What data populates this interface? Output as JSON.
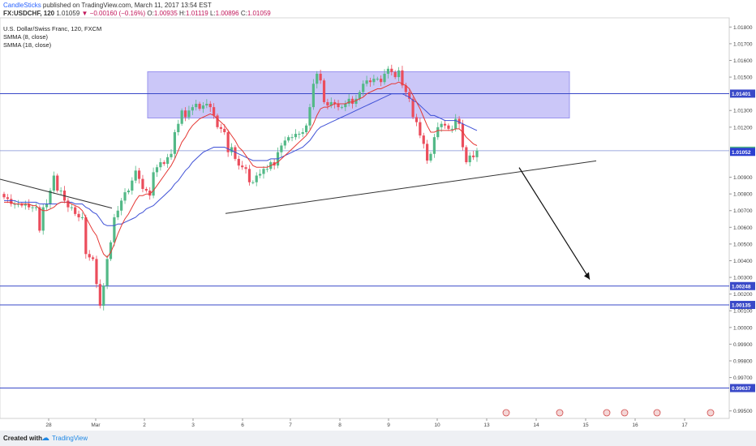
{
  "header": {
    "author": "CandleSticks",
    "published": "published on TradingView.com, March 11, 2017 13:54 EST"
  },
  "quote": {
    "symbol": "FX:USDCHF, 120",
    "last": "1.01059",
    "change": "−0.00160 (−0.16%)",
    "open_label": "O:",
    "open": "1.00935",
    "high_label": "H:",
    "high": "1.01119",
    "low_label": "L:",
    "low": "1.00896",
    "close_label": "C:",
    "close": "1.01059"
  },
  "legend": {
    "title": "U.S. Dollar/Swiss Franc, 120, FXCM",
    "sma_fast": "SMMA (8, close)",
    "sma_slow": "SMMA (18, close)"
  },
  "footer": {
    "created_with": "Created with",
    "brand": "TradingView"
  },
  "colors": {
    "bull": "#53b987",
    "bear": "#eb4d5c",
    "smma_fast": "#e53935",
    "smma_slow": "#3f51d6",
    "zone": "#b9b4f5",
    "hline": "#3949c8",
    "trend": "#333333"
  },
  "chart_data": {
    "type": "candlestick",
    "ylim": [
      0.99455,
      1.01855
    ],
    "y_ticks": [
      "1.01800",
      "1.01700",
      "1.01600",
      "1.01500",
      "1.01300",
      "1.01200",
      "1.00900",
      "1.00800",
      "1.00700",
      "1.00600",
      "1.00500",
      "1.00400",
      "1.00300",
      "1.00200",
      "1.00100",
      "1.00000",
      "0.99900",
      "0.99800",
      "0.99700",
      "0.99500"
    ],
    "x_ticks": [
      "28",
      "Mar",
      "2",
      "3",
      "6",
      "7",
      "8",
      "9",
      "10",
      "13",
      "14",
      "15",
      "16",
      "17"
    ],
    "price_labels": [
      {
        "value": 1.01401,
        "label": "1.01401",
        "style": "line"
      },
      {
        "value": 1.01059,
        "label": "1.01059",
        "style": "last"
      },
      {
        "value": 1.01052,
        "label": "1.01052",
        "style": "blue"
      },
      {
        "value": 1.00248,
        "label": "1.00248",
        "style": "line"
      },
      {
        "value": 1.00135,
        "label": "1.00135",
        "style": "line"
      },
      {
        "value": 0.99637,
        "label": "0.99637",
        "style": "line"
      }
    ],
    "resistance_zone": {
      "low": 1.01255,
      "high": 1.01532
    },
    "horizontal_lines": [
      1.01401,
      1.00248,
      1.00135,
      0.99637
    ],
    "series_close": [
      1.0078,
      1.0077,
      1.0074,
      1.0074,
      1.0074,
      1.0073,
      1.0074,
      1.0072,
      1.0072,
      1.0072,
      1.0058,
      1.0072,
      1.0074,
      1.0082,
      1.0091,
      1.0082,
      1.0082,
      1.0076,
      1.0072,
      1.0072,
      1.0068,
      1.0066,
      1.0066,
      1.0044,
      1.0042,
      1.0041,
      1.0026,
      1.0013,
      1.0025,
      1.0041,
      1.0051,
      1.0066,
      1.007,
      1.0076,
      1.0081,
      1.0082,
      1.0088,
      1.0094,
      1.0089,
      1.0083,
      1.0082,
      1.0079,
      1.0093,
      1.0096,
      1.0099,
      1.0098,
      1.0102,
      1.0104,
      1.0117,
      1.0122,
      1.013,
      1.0126,
      1.013,
      1.0132,
      1.0134,
      1.0131,
      1.0133,
      1.0134,
      1.0132,
      1.0127,
      1.012,
      1.0119,
      1.0117,
      1.0105,
      1.0108,
      1.0101,
      1.0097,
      1.0096,
      1.0095,
      1.0087,
      1.0087,
      1.0091,
      1.0092,
      1.0095,
      1.0095,
      1.0099,
      1.0097,
      1.0105,
      1.0109,
      1.0112,
      1.0114,
      1.0114,
      1.0116,
      1.0116,
      1.0117,
      1.0121,
      1.0132,
      1.0146,
      1.0152,
      1.0148,
      1.0135,
      1.0133,
      1.0135,
      1.0134,
      1.0132,
      1.0132,
      1.0134,
      1.0137,
      1.0134,
      1.0137,
      1.0141,
      1.0146,
      1.0148,
      1.0147,
      1.0149,
      1.0149,
      1.0147,
      1.0152,
      1.0155,
      1.0153,
      1.015,
      1.0154,
      1.0145,
      1.0141,
      1.0137,
      1.0126,
      1.0123,
      1.0115,
      1.011,
      1.01,
      1.0104,
      1.0114,
      1.012,
      1.0122,
      1.0121,
      1.0119,
      1.0119,
      1.0125,
      1.0122,
      1.0108,
      1.0099,
      1.0103,
      1.0102,
      1.0106
    ],
    "series_smma8": [
      1.0075,
      1.0075,
      1.0075,
      1.0074,
      1.0074,
      1.0074,
      1.0074,
      1.0074,
      1.0073,
      1.0073,
      1.0071,
      1.007,
      1.007,
      1.0071,
      1.0072,
      1.0074,
      1.0075,
      1.0075,
      1.0075,
      1.0074,
      1.0073,
      1.0072,
      1.007,
      1.0066,
      1.0062,
      1.0058,
      1.0055,
      1.0049,
      1.0044,
      1.0042,
      1.0045,
      1.005,
      1.0056,
      1.0061,
      1.0065,
      1.0068,
      1.0072,
      1.0076,
      1.0079,
      1.0079,
      1.008,
      1.008,
      1.0082,
      1.0085,
      1.0088,
      1.0091,
      1.0094,
      1.0097,
      1.0101,
      1.0106,
      1.0111,
      1.0114,
      1.0118,
      1.0121,
      1.0123,
      1.0125,
      1.0126,
      1.0127,
      1.0128,
      1.0127,
      1.0125,
      1.0123,
      1.0121,
      1.0118,
      1.0115,
      1.0112,
      1.0108,
      1.0106,
      1.0103,
      1.01,
      1.0097,
      1.0096,
      1.0096,
      1.0096,
      1.0096,
      1.0097,
      1.0098,
      1.0099,
      1.0101,
      1.0103,
      1.0105,
      1.0107,
      1.0109,
      1.0111,
      1.0113,
      1.0115,
      1.0118,
      1.0122,
      1.0127,
      1.0131,
      1.0132,
      1.0132,
      1.0133,
      1.0134,
      1.0134,
      1.0134,
      1.0134,
      1.0135,
      1.0135,
      1.0136,
      1.0137,
      1.0138,
      1.014,
      1.0141,
      1.0142,
      1.0143,
      1.0143,
      1.0144,
      1.0145,
      1.0146,
      1.0146,
      1.0147,
      1.0146,
      1.0145,
      1.0143,
      1.0139,
      1.0135,
      1.0131,
      1.0126,
      1.0121,
      1.0117,
      1.0117,
      1.0118,
      1.0118,
      1.0118,
      1.0118,
      1.0118,
      1.0119,
      1.0119,
      1.0117,
      1.0114,
      1.0112,
      1.011,
      1.0109
    ],
    "series_smma18": [
      1.0076,
      1.0076,
      1.0076,
      1.0076,
      1.0075,
      1.0075,
      1.0075,
      1.0075,
      1.0075,
      1.0075,
      1.0074,
      1.0074,
      1.0074,
      1.0074,
      1.0074,
      1.0074,
      1.0075,
      1.0075,
      1.0075,
      1.0075,
      1.0074,
      1.0074,
      1.0074,
      1.0072,
      1.0071,
      1.0069,
      1.0068,
      1.0065,
      1.0062,
      1.0061,
      1.0061,
      1.0061,
      1.0062,
      1.0062,
      1.0063,
      1.0064,
      1.0065,
      1.0066,
      1.0068,
      1.0069,
      1.0071,
      1.0072,
      1.0073,
      1.0075,
      1.0077,
      1.0079,
      1.0081,
      1.0083,
      1.0086,
      1.0088,
      1.0091,
      1.0094,
      1.0096,
      1.0099,
      1.0101,
      1.0103,
      1.0105,
      1.0106,
      1.0107,
      1.0108,
      1.0108,
      1.0108,
      1.0108,
      1.0107,
      1.0106,
      1.0105,
      1.0104,
      1.0103,
      1.0102,
      1.0101,
      1.01,
      1.01,
      1.01,
      1.01,
      1.01,
      1.0101,
      1.0101,
      1.0101,
      1.0102,
      1.0103,
      1.0104,
      1.0105,
      1.0106,
      1.0107,
      1.0108,
      1.011,
      1.0112,
      1.0115,
      1.0118,
      1.012,
      1.0121,
      1.0122,
      1.0123,
      1.0124,
      1.0125,
      1.0126,
      1.0127,
      1.0128,
      1.0129,
      1.013,
      1.0131,
      1.0132,
      1.0133,
      1.0134,
      1.0135,
      1.0136,
      1.0137,
      1.0138,
      1.0139,
      1.014,
      1.014,
      1.014,
      1.014,
      1.0139,
      1.0138,
      1.0136,
      1.0135,
      1.0133,
      1.0131,
      1.0129,
      1.0127,
      1.0127,
      1.0126,
      1.0125,
      1.0124,
      1.0124,
      1.0124,
      1.0124,
      1.0123,
      1.0122,
      1.0121,
      1.012,
      1.0119,
      1.0118
    ],
    "trendlines": [
      {
        "from": [
          0.0,
          1.00888
        ],
        "to": [
          0.148,
          1.00715
        ],
        "note": "falling"
      },
      {
        "from": [
          0.3,
          1.00683
        ],
        "to": [
          0.79,
          1.00998
        ],
        "note": "rising support"
      }
    ],
    "arrow": {
      "from_value": 1.00958,
      "to_value": 1.00288
    }
  }
}
